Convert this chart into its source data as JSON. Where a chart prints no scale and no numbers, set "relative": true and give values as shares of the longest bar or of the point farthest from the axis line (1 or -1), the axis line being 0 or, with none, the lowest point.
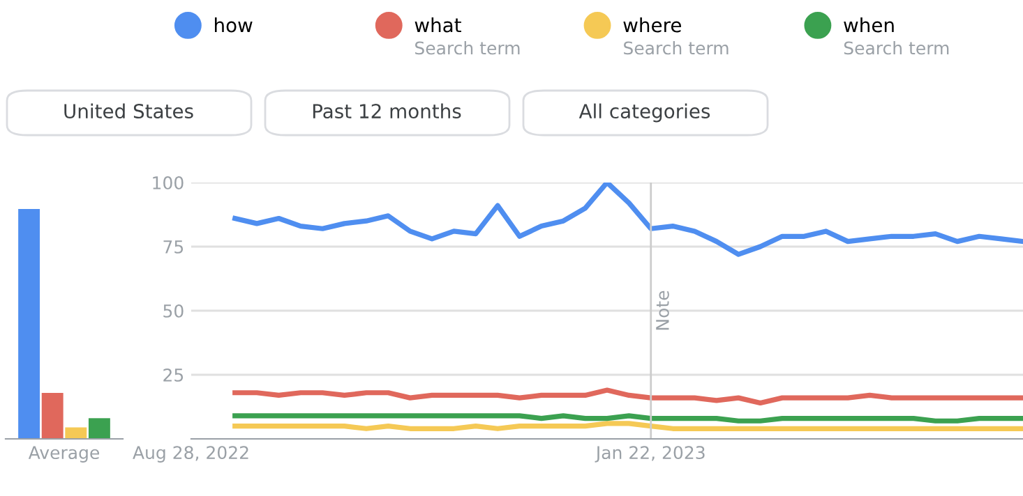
{
  "chart_data": [
    {
      "type": "bar",
      "relative": true,
      "categories": [
        "Average"
      ],
      "grid": false,
      "series": [
        {
          "color": "#4f8ef0",
          "values": [
            1
          ]
        },
        {
          "color": "#e0685c",
          "values": [
            0.2
          ]
        },
        {
          "color": "#f5c955",
          "values": [
            0.05
          ]
        },
        {
          "color": "#3ba150",
          "values": [
            0.09
          ]
        }
      ]
    },
    {
      "type": "line",
      "grid": "y",
      "legend": "top",
      "marker": "none",
      "line_style": "solid",
      "x": [
        "2022-09-11",
        "2022-09-18",
        "2022-09-25",
        "2022-10-02",
        "2022-10-09",
        "2022-10-16",
        "2022-10-23",
        "2022-10-30",
        "2022-11-06",
        "2022-11-13",
        "2022-11-20",
        "2022-11-27",
        "2022-12-04",
        "2022-12-11",
        "2022-12-18",
        "2022-12-25",
        "2023-01-01",
        "2023-01-08",
        "2023-01-15",
        "2023-01-22",
        "2023-01-29",
        "2023-02-05",
        "2023-02-12",
        "2023-02-19",
        "2023-02-26",
        "2023-03-05",
        "2023-03-12",
        "2023-03-19",
        "2023-03-26",
        "2023-04-02",
        "2023-04-09",
        "2023-04-16",
        "2023-04-23",
        "2023-04-30",
        "2023-05-07",
        "2023-05-14",
        "2023-05-21"
      ],
      "xlim": [
        "2022-08-28",
        "2023-05-21"
      ],
      "xticks": [
        {
          "value": "2022-08-28",
          "label": "Aug 28, 2022"
        },
        {
          "value": "2023-01-22",
          "label": "Jan 22, 2023"
        }
      ],
      "ylim": [
        0,
        100
      ],
      "yticks": [
        25,
        50,
        75,
        100
      ],
      "series": [
        {
          "name": "how",
          "color": "#4f8ef0",
          "values": [
            86,
            84,
            86,
            83,
            82,
            84,
            85,
            87,
            81,
            78,
            81,
            80,
            91,
            79,
            83,
            85,
            90,
            100,
            92,
            82,
            83,
            81,
            77,
            72,
            75,
            79,
            79,
            81,
            77,
            78,
            79,
            79,
            80,
            77,
            79,
            78,
            77
          ]
        },
        {
          "name": "what",
          "color": "#e0685c",
          "values": [
            18,
            18,
            17,
            18,
            18,
            17,
            18,
            18,
            16,
            17,
            17,
            17,
            17,
            16,
            17,
            17,
            17,
            19,
            17,
            16,
            16,
            16,
            15,
            16,
            14,
            16,
            16,
            16,
            16,
            17,
            16,
            16,
            16,
            16,
            16,
            16,
            16
          ]
        },
        {
          "name": "where",
          "color": "#f5c955",
          "values": [
            5,
            5,
            5,
            5,
            5,
            5,
            4,
            5,
            4,
            4,
            4,
            5,
            4,
            5,
            5,
            5,
            5,
            6,
            6,
            5,
            4,
            4,
            4,
            4,
            4,
            4,
            4,
            4,
            4,
            4,
            4,
            4,
            4,
            4,
            4,
            4,
            4
          ]
        },
        {
          "name": "when",
          "color": "#3ba150",
          "values": [
            9,
            9,
            9,
            9,
            9,
            9,
            9,
            9,
            9,
            9,
            9,
            9,
            9,
            9,
            8,
            9,
            8,
            8,
            9,
            8,
            8,
            8,
            8,
            7,
            7,
            8,
            8,
            8,
            8,
            8,
            8,
            8,
            7,
            7,
            8,
            8,
            8
          ]
        }
      ],
      "ref_lines": [
        {
          "axis": "x",
          "value": "2023-01-22",
          "label": "Note",
          "color": "#cccccc"
        }
      ],
      "annotations": [
        "Search term",
        "Search term",
        "Search term",
        "United States",
        "Past 12 months",
        "All categories"
      ]
    }
  ]
}
